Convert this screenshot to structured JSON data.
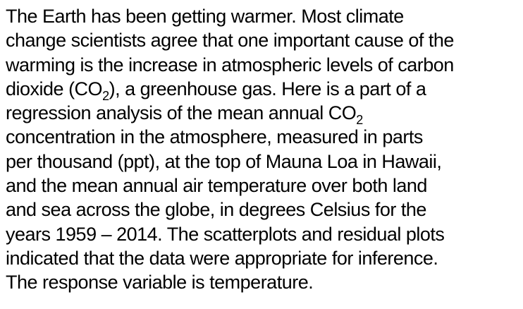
{
  "paragraph": {
    "lines": [
      {
        "text": "The Earth has been getting warmer. Most climate"
      },
      {
        "text": "change scientists agree that one important cause of the"
      },
      {
        "text": "warming is the increase in atmospheric levels of carbon"
      },
      {
        "pre": "dioxide (CO",
        "sub": "2",
        "post": "), a greenhouse gas. Here is a part of a"
      },
      {
        "pre": "regression analysis of the mean annual CO",
        "sub": "2",
        "post": ""
      },
      {
        "text": "concentration in the atmosphere, measured in parts"
      },
      {
        "text": "per thousand (ppt), at the top of Mauna Loa in Hawaii,"
      },
      {
        "text": "and the mean annual air temperature over both land"
      },
      {
        "text": "and sea across the globe, in degrees Celsius for the"
      },
      {
        "text": "years 1959 – 2014. The scatterplots and residual plots"
      },
      {
        "text": "indicated that the data were appropriate for inference."
      },
      {
        "text": "The response variable is temperature."
      }
    ]
  }
}
